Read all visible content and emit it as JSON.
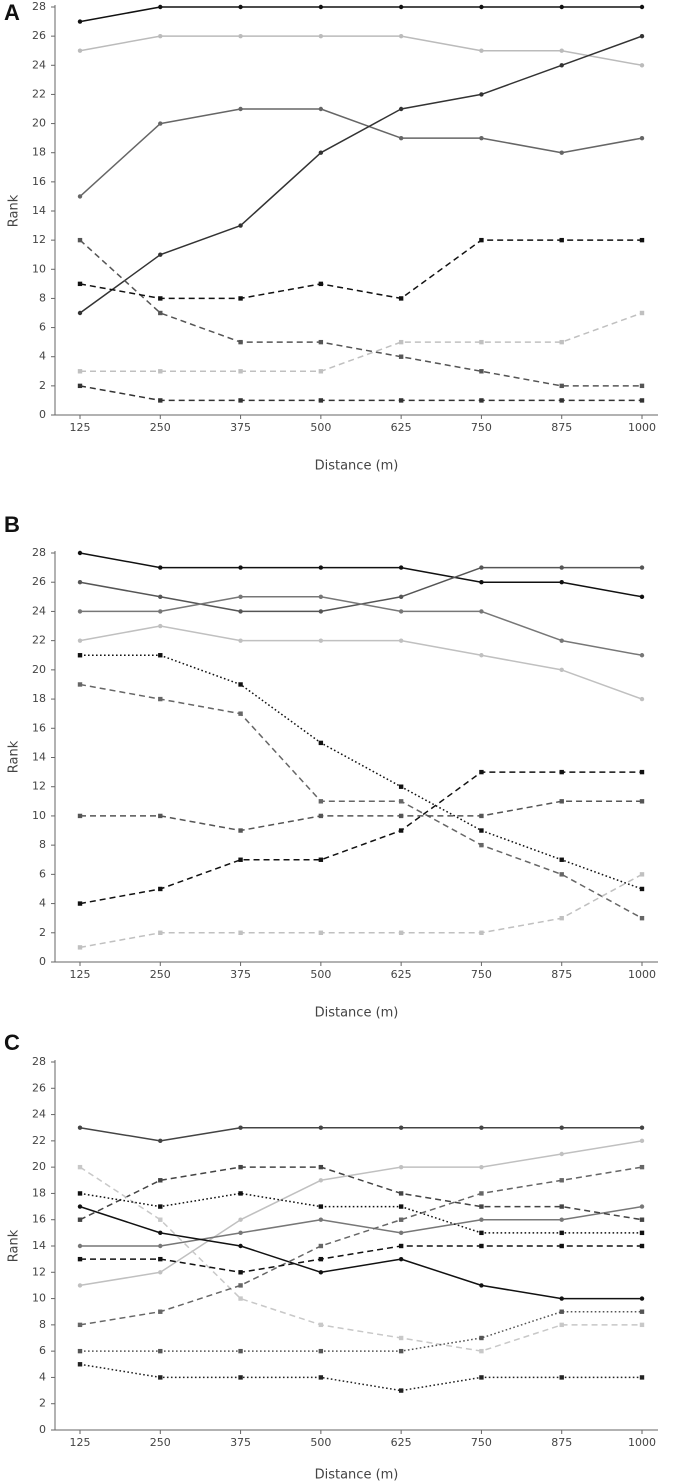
{
  "figure": {
    "panel_labels": [
      "A",
      "B",
      "C"
    ]
  },
  "chart_data": [
    {
      "type": "line",
      "panel": "A",
      "xlabel": "Distance (m)",
      "ylabel": "Rank",
      "categories": [
        "125",
        "250",
        "375",
        "500",
        "625",
        "750",
        "875",
        "1000"
      ],
      "ylim": [
        0,
        28
      ],
      "yticks": [
        0,
        2,
        4,
        6,
        8,
        10,
        12,
        14,
        16,
        18,
        20,
        22,
        24,
        26,
        28
      ],
      "grid": false,
      "series": [
        {
          "values": [
            27,
            28,
            28,
            28,
            28,
            28,
            28,
            28
          ],
          "color": "#111111",
          "dash": "solid"
        },
        {
          "values": [
            25,
            26,
            26,
            26,
            26,
            25,
            25,
            24
          ],
          "color": "#bbbbbb",
          "dash": "solid"
        },
        {
          "values": [
            15,
            20,
            21,
            21,
            19,
            19,
            18,
            19
          ],
          "color": "#666666",
          "dash": "solid"
        },
        {
          "values": [
            7,
            11,
            13,
            18,
            21,
            22,
            24,
            26
          ],
          "color": "#333333",
          "dash": "solid"
        },
        {
          "values": [
            12,
            7,
            5,
            5,
            4,
            3,
            2,
            2
          ],
          "color": "#555555",
          "dash": "dashed"
        },
        {
          "values": [
            9,
            8,
            8,
            9,
            8,
            12,
            12,
            12
          ],
          "color": "#111111",
          "dash": "dashed"
        },
        {
          "values": [
            3,
            3,
            3,
            3,
            5,
            5,
            5,
            7
          ],
          "color": "#c0c0c0",
          "dash": "dashed"
        },
        {
          "values": [
            2,
            1,
            1,
            1,
            1,
            1,
            1,
            1
          ],
          "color": "#333333",
          "dash": "dashed"
        }
      ]
    },
    {
      "type": "line",
      "panel": "B",
      "xlabel": "Distance (m)",
      "ylabel": "Rank",
      "categories": [
        "125",
        "250",
        "375",
        "500",
        "625",
        "750",
        "875",
        "1000"
      ],
      "ylim": [
        0,
        28
      ],
      "yticks": [
        0,
        2,
        4,
        6,
        8,
        10,
        12,
        14,
        16,
        18,
        20,
        22,
        24,
        26,
        28
      ],
      "grid": false,
      "series": [
        {
          "values": [
            28,
            27,
            27,
            27,
            27,
            26,
            26,
            25
          ],
          "color": "#111111",
          "dash": "solid"
        },
        {
          "values": [
            26,
            25,
            24,
            24,
            25,
            27,
            27,
            27
          ],
          "color": "#555555",
          "dash": "solid"
        },
        {
          "values": [
            24,
            24,
            25,
            25,
            24,
            24,
            22,
            21
          ],
          "color": "#777777",
          "dash": "solid"
        },
        {
          "values": [
            22,
            23,
            22,
            22,
            22,
            21,
            20,
            18
          ],
          "color": "#c0c0c0",
          "dash": "solid"
        },
        {
          "values": [
            21,
            21,
            19,
            15,
            12,
            9,
            7,
            5
          ],
          "color": "#111111",
          "dash": "dotted"
        },
        {
          "values": [
            19,
            18,
            17,
            11,
            11,
            8,
            6,
            3
          ],
          "color": "#666666",
          "dash": "dashed"
        },
        {
          "values": [
            10,
            10,
            9,
            10,
            10,
            10,
            11,
            11
          ],
          "color": "#555555",
          "dash": "dashed"
        },
        {
          "values": [
            4,
            5,
            7,
            7,
            9,
            13,
            13,
            13
          ],
          "color": "#111111",
          "dash": "dashed"
        },
        {
          "values": [
            1,
            2,
            2,
            2,
            2,
            2,
            3,
            6
          ],
          "color": "#c0c0c0",
          "dash": "dashed"
        }
      ]
    },
    {
      "type": "line",
      "panel": "C",
      "xlabel": "Distance (m)",
      "ylabel": "Rank",
      "categories": [
        "125",
        "250",
        "375",
        "500",
        "625",
        "750",
        "875",
        "1000"
      ],
      "ylim": [
        0,
        28
      ],
      "yticks": [
        0,
        2,
        4,
        6,
        8,
        10,
        12,
        14,
        16,
        18,
        20,
        22,
        24,
        26,
        28
      ],
      "grid": false,
      "series": [
        {
          "values": [
            23,
            22,
            23,
            23,
            23,
            23,
            23,
            23
          ],
          "color": "#444444",
          "dash": "solid"
        },
        {
          "values": [
            11,
            12,
            16,
            19,
            20,
            20,
            21,
            22
          ],
          "color": "#c0c0c0",
          "dash": "solid"
        },
        {
          "values": [
            14,
            14,
            15,
            16,
            15,
            16,
            16,
            17
          ],
          "color": "#777777",
          "dash": "solid"
        },
        {
          "values": [
            17,
            15,
            14,
            12,
            13,
            11,
            10,
            10
          ],
          "color": "#111111",
          "dash": "solid"
        },
        {
          "values": [
            16,
            19,
            20,
            20,
            18,
            17,
            17,
            16
          ],
          "color": "#444444",
          "dash": "dashed"
        },
        {
          "values": [
            20,
            16,
            10,
            8,
            7,
            6,
            8,
            8
          ],
          "color": "#c8c8c8",
          "dash": "dashed"
        },
        {
          "values": [
            8,
            9,
            11,
            14,
            16,
            18,
            19,
            20
          ],
          "color": "#666666",
          "dash": "dashed"
        },
        {
          "values": [
            13,
            13,
            12,
            13,
            14,
            14,
            14,
            14
          ],
          "color": "#111111",
          "dash": "dashed"
        },
        {
          "values": [
            18,
            17,
            18,
            17,
            17,
            15,
            15,
            15
          ],
          "color": "#111111",
          "dash": "dotted"
        },
        {
          "values": [
            6,
            6,
            6,
            6,
            6,
            7,
            9,
            9
          ],
          "color": "#555555",
          "dash": "dotted"
        },
        {
          "values": [
            5,
            4,
            4,
            4,
            3,
            4,
            4,
            4
          ],
          "color": "#222222",
          "dash": "dotted"
        }
      ]
    }
  ]
}
